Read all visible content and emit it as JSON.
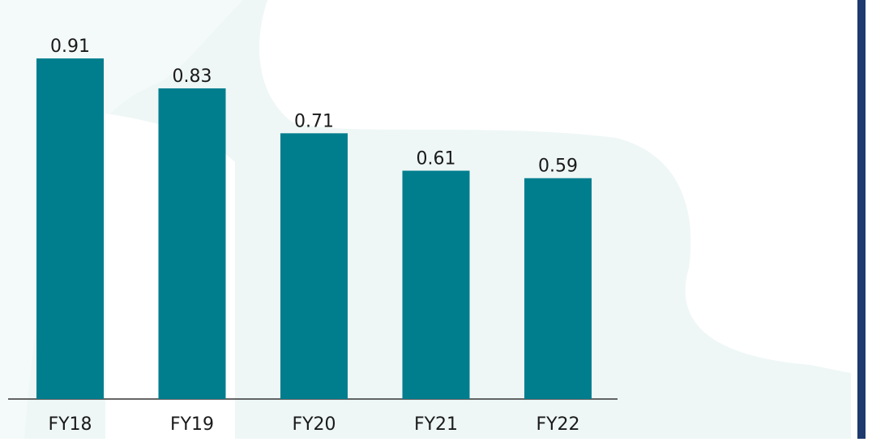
{
  "chart_data": {
    "type": "bar",
    "categories": [
      "FY18",
      "FY19",
      "FY20",
      "FY21",
      "FY22"
    ],
    "values": [
      0.91,
      0.83,
      0.71,
      0.61,
      0.59
    ],
    "color": "#007e8e"
  }
}
